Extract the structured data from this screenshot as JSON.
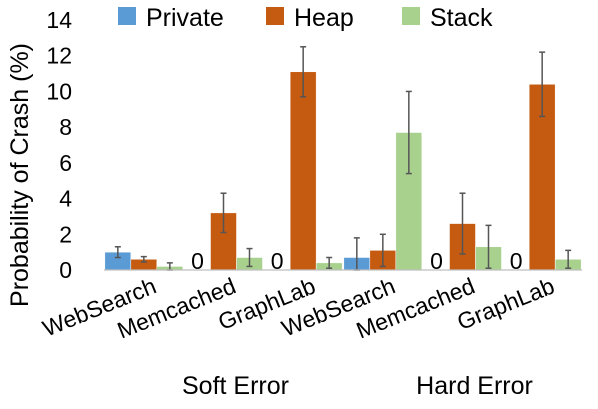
{
  "chart_data": {
    "type": "bar",
    "title": "",
    "xlabel": "",
    "ylabel": "Probability of Crash (%)",
    "ylim": [
      0,
      14
    ],
    "yticks": [
      0,
      2,
      4,
      6,
      8,
      10,
      12,
      14
    ],
    "grid": false,
    "legend": "top",
    "categories": [
      "WebSearch",
      "Memcached",
      "GraphLab",
      "WebSearch",
      "Memcached",
      "GraphLab"
    ],
    "groups": [
      {
        "label": "Soft Error",
        "categories": [
          "WebSearch",
          "Memcached",
          "GraphLab"
        ]
      },
      {
        "label": "Hard Error",
        "categories": [
          "WebSearch",
          "Memcached",
          "GraphLab"
        ]
      }
    ],
    "series": [
      {
        "name": "Private",
        "color": "#5B9BD5",
        "values": [
          1.0,
          0,
          0,
          0.7,
          0,
          0
        ],
        "error": [
          0.3,
          0,
          0,
          1.1,
          0,
          0
        ],
        "zero_labels": [
          "",
          "0",
          "0",
          "",
          "0",
          "0"
        ]
      },
      {
        "name": "Heap",
        "color": "#C55A11",
        "values": [
          0.6,
          3.2,
          11.1,
          1.1,
          2.6,
          10.4
        ],
        "error": [
          0.15,
          1.1,
          1.4,
          0.9,
          1.7,
          1.8
        ],
        "zero_labels": [
          "",
          "",
          "",
          "",
          "",
          ""
        ]
      },
      {
        "name": "Stack",
        "color": "#A9D18E",
        "values": [
          0.2,
          0.7,
          0.4,
          7.7,
          1.3,
          0.6
        ],
        "error": [
          0.2,
          0.5,
          0.3,
          2.3,
          1.2,
          0.5
        ],
        "zero_labels": [
          "",
          "",
          "",
          "",
          "",
          ""
        ]
      }
    ]
  }
}
